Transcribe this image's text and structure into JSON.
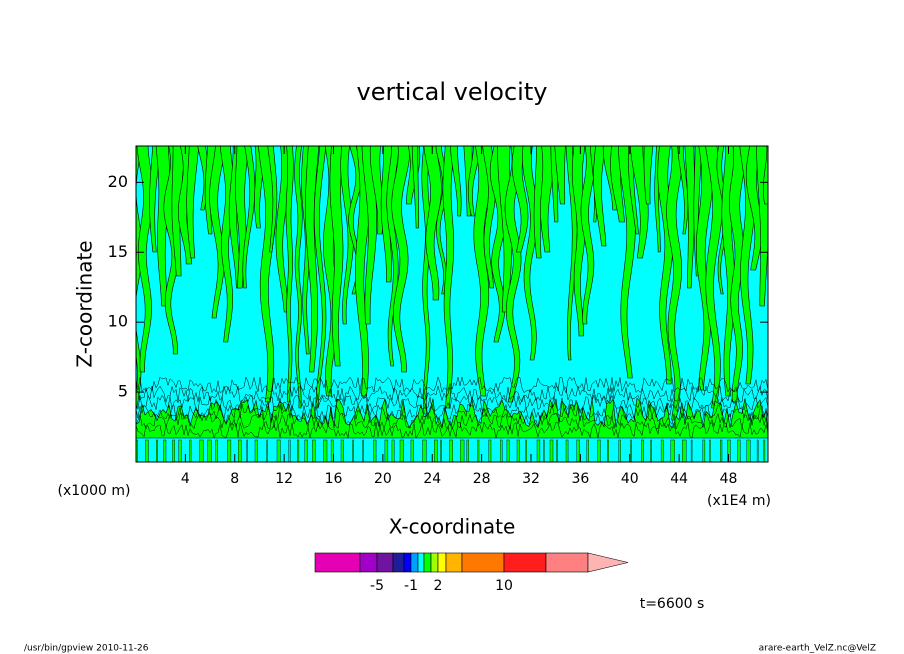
{
  "chart_data": {
    "type": "contour",
    "title": "vertical velocity",
    "x_label": "X-coordinate",
    "y_label": "Z-coordinate",
    "x_unit": "(x1E4 m)",
    "y_unit": "(x1000 m)",
    "xlim": [
      0,
      51.2
    ],
    "ylim": [
      0,
      22.6
    ],
    "xticks": [
      4,
      8,
      12,
      16,
      20,
      24,
      28,
      32,
      36,
      40,
      44,
      48
    ],
    "yticks": [
      5,
      10,
      15,
      20
    ],
    "colorbar": {
      "levels": [
        -20,
        -10,
        -5,
        -3,
        -2,
        -1,
        0,
        0.5,
        1,
        2,
        3,
        5,
        10,
        15,
        20
      ],
      "colors": [
        "#e600b4",
        "#a000c8",
        "#6e14a0",
        "#1e1e9b",
        "#0000ff",
        "#00a0ff",
        "#00ffff",
        "#00ff00",
        "#a0ff00",
        "#ffff00",
        "#ffb400",
        "#ff7800",
        "#ff1e1e",
        "#ff8080"
      ],
      "extend_color": "#ffb4b4",
      "ticks": [
        -5,
        -1,
        2,
        10
      ]
    },
    "annotation": "t=6600 s",
    "footer_left": "/usr/bin/gpview  2010-11-26",
    "footer_right": "arare-earth_VelZ.nc@VelZ"
  }
}
